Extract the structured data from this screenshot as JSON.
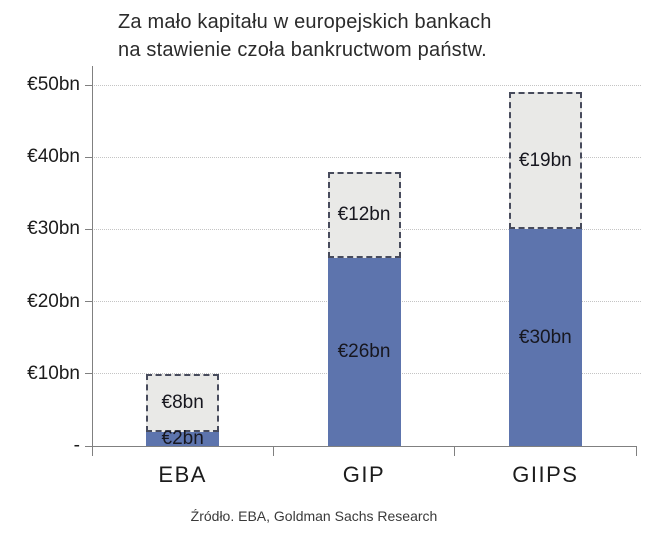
{
  "title": {
    "line1": "Za mało kapitału w europejskich bankach",
    "line2": "na stawienie czoła bankructwom państw."
  },
  "source": "Źródło. EBA, Goldman Sachs Research",
  "colors": {
    "bar_blue": "#5d74ad",
    "bar_gray": "#e9e9e7",
    "dash_border": "#474b5c",
    "gridline": "#c4c4c4",
    "axis": "#808080",
    "label_text": "#17171f"
  },
  "chart_data": {
    "type": "bar",
    "subtype": "stacked",
    "title": "Za mało kapitału w europejskich bankach na stawienie czoła bankructwom państw.",
    "categories": [
      "EBA",
      "GIP",
      "GIIPS"
    ],
    "series": [
      {
        "segment": "bottom-solid-blue",
        "color_key": "bar_blue",
        "values": [
          2,
          26,
          30
        ],
        "labels": [
          "€2bn",
          "€26bn",
          "€30bn"
        ]
      },
      {
        "segment": "top-dashed-gray",
        "color_key": "bar_gray",
        "values": [
          8,
          12,
          19
        ],
        "labels": [
          "€8bn",
          "€12bn",
          "€19bn"
        ]
      }
    ],
    "totals": [
      10,
      38,
      49
    ],
    "y_ticks": [
      {
        "value": 50,
        "label": "€50bn"
      },
      {
        "value": 40,
        "label": "€40bn"
      },
      {
        "value": 30,
        "label": "€30bn"
      },
      {
        "value": 20,
        "label": "€20bn"
      },
      {
        "value": 10,
        "label": "€10bn"
      },
      {
        "value": 0,
        "label": "-"
      }
    ],
    "ylim": [
      0,
      50
    ],
    "grid": "horizontal-dotted",
    "legend": "none",
    "xlabel": "",
    "ylabel": ""
  }
}
